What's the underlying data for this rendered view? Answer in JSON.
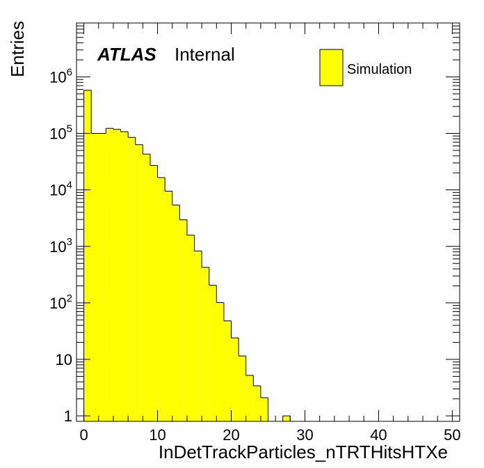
{
  "chart_data": {
    "type": "bar",
    "title": "",
    "xlabel": "InDetTrackParticles_nTRTHitsHTXe",
    "ylabel": "Entries",
    "yscale": "log",
    "xlim": [
      -1,
      51
    ],
    "ylim": [
      0.8,
      9000000
    ],
    "x_ticks": [
      0,
      10,
      20,
      30,
      40,
      50
    ],
    "x_tick_labels": [
      "0",
      "10",
      "20",
      "30",
      "40",
      "50"
    ],
    "y_tick_labels": [
      {
        "base": "1",
        "exp": ""
      },
      {
        "base": "10",
        "exp": ""
      },
      {
        "base": "10",
        "exp": "2"
      },
      {
        "base": "10",
        "exp": "3"
      },
      {
        "base": "10",
        "exp": "4"
      },
      {
        "base": "10",
        "exp": "5"
      },
      {
        "base": "10",
        "exp": "6"
      }
    ],
    "bin_edges_start": -1,
    "bin_width": 1,
    "bin_values": [
      0,
      580000,
      100000,
      100000,
      123000,
      118000,
      107000,
      85000,
      63000,
      43000,
      27000,
      16500,
      9500,
      5400,
      2950,
      1580,
      830,
      425,
      205,
      101,
      48,
      24,
      11.5,
      5.2,
      3.4,
      2.1,
      0,
      0,
      1,
      0,
      0,
      0,
      0,
      0,
      0,
      0,
      0,
      0,
      0,
      0,
      0,
      0,
      0,
      0,
      0,
      0,
      0,
      0,
      0,
      0,
      0,
      0
    ],
    "fill_color": "#ffff00",
    "line_color": "#000000",
    "legend": {
      "label": "Simulation",
      "position": "top-right"
    },
    "annotation": {
      "bold": "ATLAS",
      "normal": "Internal"
    }
  }
}
